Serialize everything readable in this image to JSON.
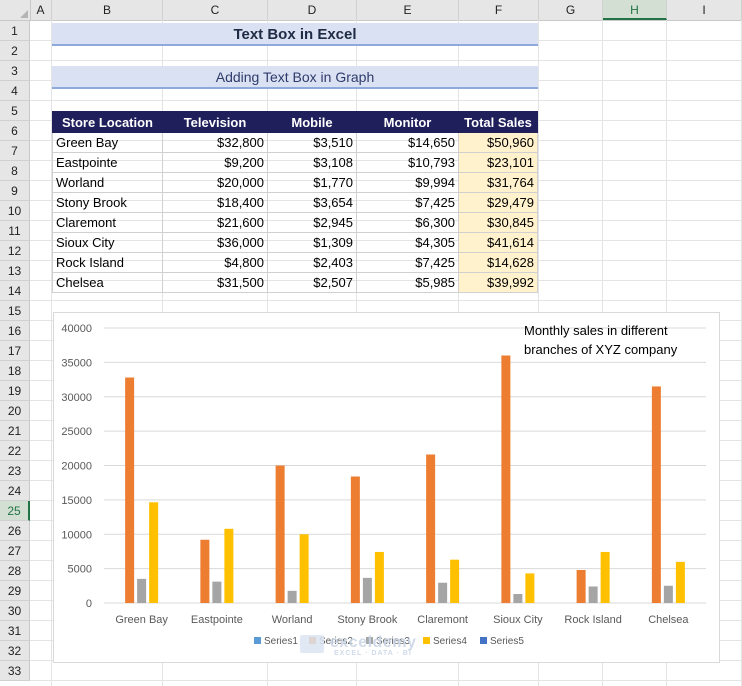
{
  "columns": [
    "A",
    "B",
    "C",
    "D",
    "E",
    "F",
    "G",
    "H",
    "I"
  ],
  "active_column": "H",
  "rows": [
    "1",
    "2",
    "3",
    "4",
    "5",
    "6",
    "7",
    "8",
    "9",
    "10",
    "11",
    "12",
    "13",
    "14",
    "15",
    "16",
    "17",
    "18",
    "19",
    "20",
    "21",
    "22",
    "23",
    "24",
    "25",
    "26",
    "27",
    "28",
    "29",
    "30",
    "31",
    "32",
    "33"
  ],
  "active_row": "25",
  "title": "Text Box in Excel",
  "subtitle": "Adding Text Box in Graph",
  "table": {
    "headers": [
      "Store Location",
      "Television",
      "Mobile",
      "Monitor",
      "Total Sales"
    ],
    "rows": [
      [
        "Green Bay",
        "$32,800",
        "$3,510",
        "$14,650",
        "$50,960"
      ],
      [
        "Eastpointe",
        "$9,200",
        "$3,108",
        "$10,793",
        "$23,101"
      ],
      [
        "Worland",
        "$20,000",
        "$1,770",
        "$9,994",
        "$31,764"
      ],
      [
        "Stony Brook",
        "$18,400",
        "$3,654",
        "$7,425",
        "$29,479"
      ],
      [
        "Claremont",
        "$21,600",
        "$2,945",
        "$6,300",
        "$30,845"
      ],
      [
        "Sioux City",
        "$36,000",
        "$1,309",
        "$4,305",
        "$41,614"
      ],
      [
        "Rock Island",
        "$4,800",
        "$2,403",
        "$7,425",
        "$14,628"
      ],
      [
        "Chelsea",
        "$31,500",
        "$2,507",
        "$5,985",
        "$39,992"
      ]
    ]
  },
  "textbox_line1": "Monthly sales in different",
  "textbox_line2": "branches of XYZ company",
  "watermark_main": "exceldemy",
  "watermark_sub": "EXCEL · DATA · BI",
  "chart_data": {
    "type": "bar",
    "categories": [
      "Green Bay",
      "Eastpointe",
      "Worland",
      "Stony Brook",
      "Claremont",
      "Sioux City",
      "Rock Island",
      "Chelsea"
    ],
    "ylim": [
      0,
      40000
    ],
    "yticks": [
      0,
      5000,
      10000,
      15000,
      20000,
      25000,
      30000,
      35000,
      40000
    ],
    "grid": true,
    "legend_position": "bottom",
    "series": [
      {
        "name": "Series1",
        "color": "#5b9bd5",
        "values": [
          0,
          0,
          0,
          0,
          0,
          0,
          0,
          0
        ]
      },
      {
        "name": "Series2",
        "color": "#ed7d31",
        "values": [
          32800,
          9200,
          20000,
          18400,
          21600,
          36000,
          4800,
          31500
        ]
      },
      {
        "name": "Series3",
        "color": "#a5a5a5",
        "values": [
          3510,
          3108,
          1770,
          3654,
          2945,
          1309,
          2403,
          2507
        ]
      },
      {
        "name": "Series4",
        "color": "#ffc000",
        "values": [
          14650,
          10793,
          9994,
          7425,
          6300,
          4305,
          7425,
          5985
        ]
      },
      {
        "name": "Series5",
        "color": "#4472c4",
        "values": [
          0,
          0,
          0,
          0,
          0,
          0,
          0,
          0
        ]
      }
    ]
  }
}
